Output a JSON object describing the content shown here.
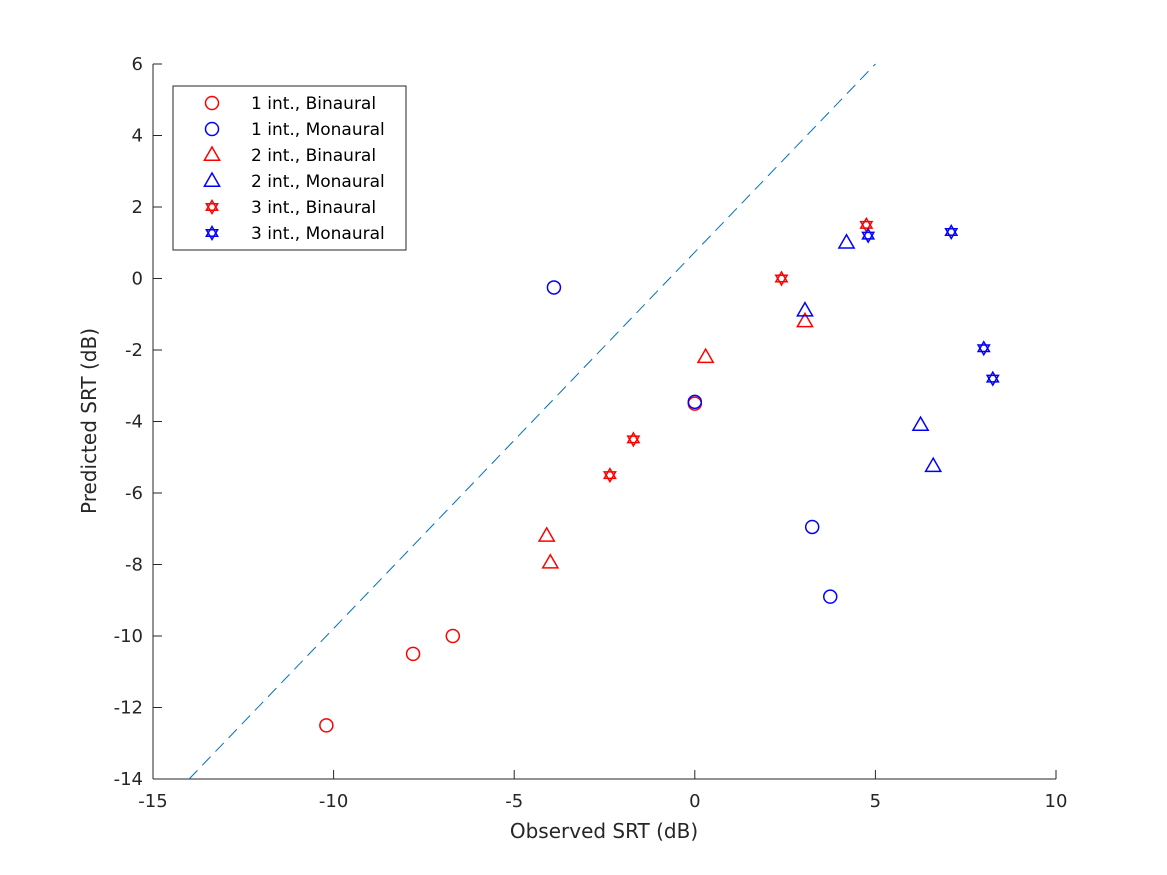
{
  "chart_data": {
    "type": "scatter",
    "title": "",
    "xlabel": "Observed SRT (dB)",
    "ylabel": "Predicted SRT (dB)",
    "xlim": [
      -15,
      10
    ],
    "ylim": [
      -14,
      6
    ],
    "xticks": [
      -15,
      -10,
      -5,
      0,
      5,
      10
    ],
    "yticks": [
      -14,
      -12,
      -10,
      -8,
      -6,
      -4,
      -2,
      0,
      2,
      4,
      6
    ],
    "grid": false,
    "legend_position": "top-left",
    "reference_line": {
      "style": "dashed",
      "color": "#0072BD",
      "x": [
        -14,
        5
      ],
      "y": [
        -14,
        6
      ]
    },
    "series": [
      {
        "name": "1 int., Binaural",
        "marker": "circle",
        "color": "#FF0000",
        "points": [
          [
            -10.2,
            -12.5
          ],
          [
            -7.8,
            -10.5
          ],
          [
            -6.7,
            -10.0
          ],
          [
            0.0,
            -3.5
          ]
        ]
      },
      {
        "name": "1 int., Monaural",
        "marker": "circle",
        "color": "#0000FF",
        "points": [
          [
            -3.9,
            -0.25
          ],
          [
            0.0,
            -3.45
          ],
          [
            3.25,
            -6.95
          ],
          [
            3.75,
            -8.9
          ]
        ]
      },
      {
        "name": "2 int., Binaural",
        "marker": "triangle",
        "color": "#FF0000",
        "points": [
          [
            -4.1,
            -7.2
          ],
          [
            -4.0,
            -7.95
          ],
          [
            0.3,
            -2.2
          ],
          [
            3.05,
            -1.2
          ]
        ]
      },
      {
        "name": "2 int., Monaural",
        "marker": "triangle",
        "color": "#0000FF",
        "points": [
          [
            3.05,
            -0.9
          ],
          [
            4.2,
            1.0
          ],
          [
            6.25,
            -4.1
          ],
          [
            6.6,
            -5.25
          ]
        ]
      },
      {
        "name": "3 int., Binaural",
        "marker": "hexagram",
        "color": "#FF0000",
        "points": [
          [
            -2.35,
            -5.5
          ],
          [
            -1.7,
            -4.5
          ],
          [
            2.4,
            0.0
          ],
          [
            4.75,
            1.5
          ]
        ]
      },
      {
        "name": "3 int., Monaural",
        "marker": "hexagram",
        "color": "#0000FF",
        "points": [
          [
            4.8,
            1.2
          ],
          [
            7.1,
            1.3
          ],
          [
            8.0,
            -1.95
          ],
          [
            8.25,
            -2.8
          ]
        ]
      }
    ]
  }
}
